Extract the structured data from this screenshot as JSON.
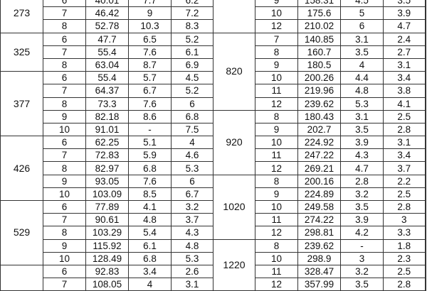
{
  "left_table": {
    "groups": [
      {
        "diameter": "273",
        "rows": [
          [
            "6",
            "40.01",
            "7.7",
            "6.2"
          ],
          [
            "7",
            "46.42",
            "9",
            "7.2"
          ],
          [
            "8",
            "52.78",
            "10.3",
            "8.3"
          ]
        ]
      },
      {
        "diameter": "325",
        "rows": [
          [
            "6",
            "47.7",
            "6.5",
            "5.2"
          ],
          [
            "7",
            "55.4",
            "7.6",
            "6.1"
          ],
          [
            "8",
            "63.04",
            "8.7",
            "6.9"
          ]
        ]
      },
      {
        "diameter": "377",
        "rows": [
          [
            "6",
            "55.4",
            "5.7",
            "4.5"
          ],
          [
            "7",
            "64.37",
            "6.7",
            "5.2"
          ],
          [
            "8",
            "73.3",
            "7.6",
            "6"
          ],
          [
            "9",
            "82.18",
            "8.6",
            "6.8"
          ],
          [
            "10",
            "91.01",
            "-",
            "7.5"
          ]
        ]
      },
      {
        "diameter": "426",
        "rows": [
          [
            "6",
            "62.25",
            "5.1",
            "4"
          ],
          [
            "7",
            "72.83",
            "5.9",
            "4.6"
          ],
          [
            "8",
            "82.97",
            "6.8",
            "5.3"
          ],
          [
            "9",
            "93.05",
            "7.6",
            "6"
          ],
          [
            "10",
            "103.09",
            "8.5",
            "6.7"
          ]
        ]
      },
      {
        "diameter": "529",
        "rows": [
          [
            "6",
            "77.89",
            "4.1",
            "3.2"
          ],
          [
            "7",
            "90.61",
            "4.8",
            "3.7"
          ],
          [
            "8",
            "103.29",
            "5.4",
            "4.3"
          ],
          [
            "9",
            "115.92",
            "6.1",
            "4.8"
          ],
          [
            "10",
            "128.49",
            "6.8",
            "5.3"
          ]
        ]
      },
      {
        "diameter": "",
        "rows": [
          [
            "6",
            "92.83",
            "3.4",
            "2.6"
          ],
          [
            "7",
            "108.05",
            "4",
            "3.1"
          ]
        ]
      }
    ]
  },
  "right_table": {
    "groups": [
      {
        "diameter": "",
        "rows": [
          [
            "9",
            "158.31",
            "4.5",
            "3.5"
          ],
          [
            "10",
            "175.6",
            "5",
            "3.9"
          ],
          [
            "12",
            "210.02",
            "6",
            "4.7"
          ]
        ]
      },
      {
        "diameter": "820",
        "rows": [
          [
            "7",
            "140.85",
            "3.1",
            "2.4"
          ],
          [
            "8",
            "160.7",
            "3.5",
            "2.7"
          ],
          [
            "9",
            "180.5",
            "4",
            "3.1"
          ],
          [
            "10",
            "200.26",
            "4.4",
            "3.4"
          ],
          [
            "11",
            "219.96",
            "4.8",
            "3.8"
          ],
          [
            "12",
            "239.62",
            "5.3",
            "4.1"
          ]
        ]
      },
      {
        "diameter": "920",
        "rows": [
          [
            "8",
            "180.43",
            "3.1",
            "2.5"
          ],
          [
            "9",
            "202.7",
            "3.5",
            "2.8"
          ],
          [
            "10",
            "224.92",
            "3.9",
            "3.1"
          ],
          [
            "11",
            "247.22",
            "4.3",
            "3.4"
          ],
          [
            "12",
            "269.21",
            "4.7",
            "3.7"
          ]
        ]
      },
      {
        "diameter": "1020",
        "rows": [
          [
            "8",
            "200.16",
            "2.8",
            "2.2"
          ],
          [
            "9",
            "224.89",
            "3.2",
            "2.5"
          ],
          [
            "10",
            "249.58",
            "3.5",
            "2.8"
          ],
          [
            "11",
            "274.22",
            "3.9",
            "3"
          ],
          [
            "12",
            "298.81",
            "4.2",
            "3.3"
          ]
        ]
      },
      {
        "diameter": "1220",
        "rows": [
          [
            "8",
            "239.62",
            "-",
            "1.8"
          ],
          [
            "10",
            "298.9",
            "3",
            "2.3"
          ],
          [
            "11",
            "328.47",
            "3.2",
            "2.5"
          ],
          [
            "12",
            "357.99",
            "3.5",
            "2.8"
          ]
        ]
      }
    ]
  }
}
